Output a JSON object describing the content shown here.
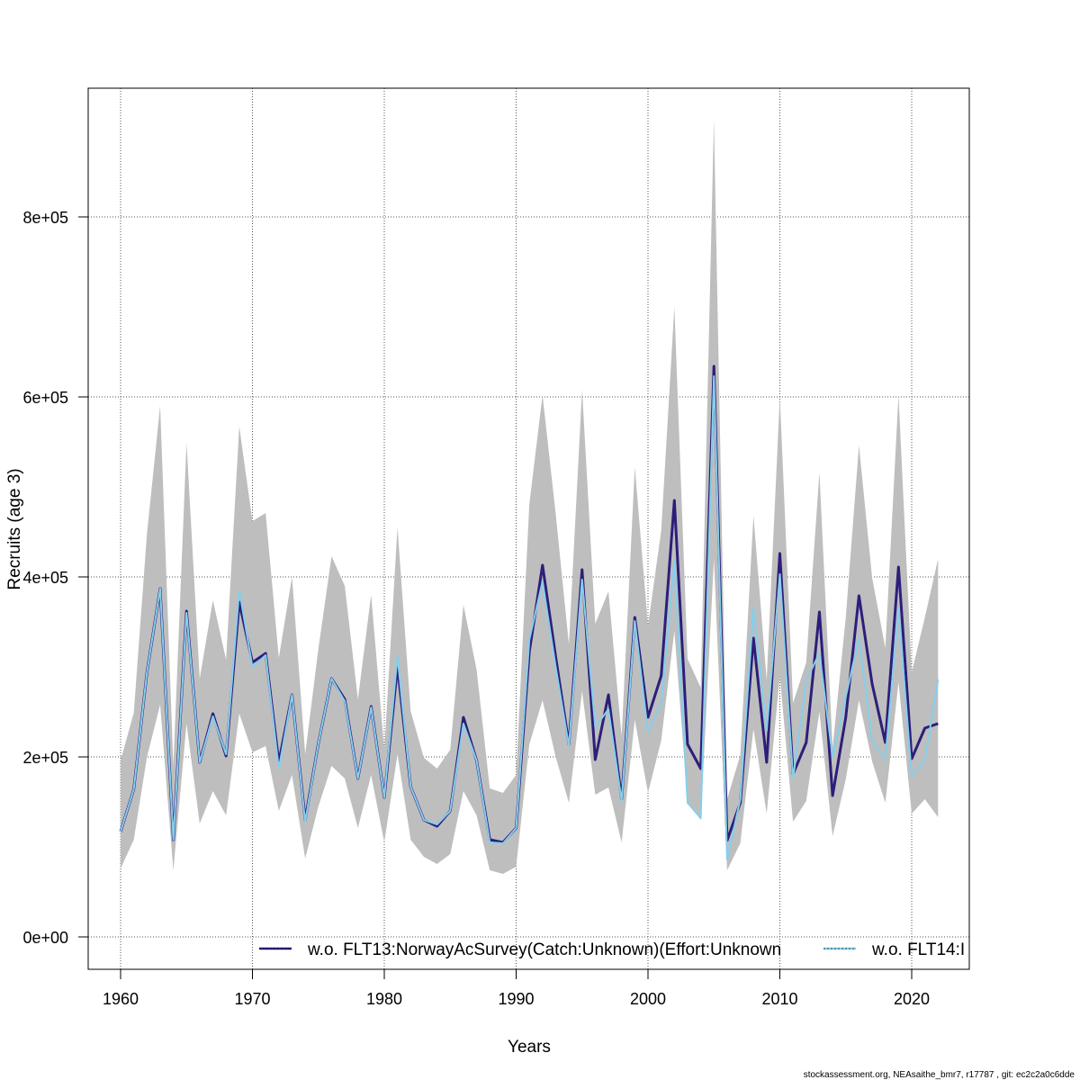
{
  "chart_data": {
    "type": "line",
    "title": "",
    "xlabel": "Years",
    "ylabel": "Recruits (age 3)",
    "xlim": [
      1958,
      2024.5
    ],
    "ylim": [
      -36000,
      944000
    ],
    "x_ticks": [
      1960,
      1970,
      1980,
      1990,
      2000,
      2010,
      2020
    ],
    "x_tick_labels": [
      "1960",
      "1970",
      "1980",
      "1990",
      "2000",
      "2010",
      "2020"
    ],
    "y_ticks": [
      0,
      200000,
      400000,
      600000,
      800000
    ],
    "y_tick_labels": [
      "0e+00",
      "2e+05",
      "4e+05",
      "6e+05",
      "8e+05"
    ],
    "grid": true,
    "legend_position": "bottom",
    "x": [
      1960,
      1961,
      1962,
      1963,
      1964,
      1965,
      1966,
      1967,
      1968,
      1969,
      1970,
      1971,
      1972,
      1973,
      1974,
      1975,
      1976,
      1977,
      1978,
      1979,
      1980,
      1981,
      1982,
      1983,
      1984,
      1985,
      1986,
      1987,
      1988,
      1989,
      1990,
      1991,
      1992,
      1993,
      1994,
      1995,
      1996,
      1997,
      1998,
      1999,
      2000,
      2001,
      2002,
      2003,
      2004,
      2005,
      2006,
      2007,
      2008,
      2009,
      2010,
      2011,
      2012,
      2013,
      2014,
      2015,
      2016,
      2017,
      2018,
      2019,
      2020,
      2021,
      2022
    ],
    "band": {
      "name": "confidence interval",
      "color": "#bebebe",
      "upper": [
        196000,
        249000,
        448000,
        590000,
        190000,
        549000,
        287000,
        374000,
        308000,
        567000,
        462000,
        471000,
        310000,
        400000,
        203000,
        320000,
        423000,
        390000,
        264000,
        380000,
        208000,
        455000,
        251000,
        199000,
        187000,
        208000,
        369000,
        297000,
        165000,
        160000,
        180000,
        481000,
        602000,
        470000,
        325000,
        608000,
        348000,
        384000,
        223000,
        522000,
        346000,
        451000,
        700000,
        309000,
        277000,
        908000,
        153000,
        202000,
        468000,
        285000,
        600000,
        260000,
        305000,
        516000,
        210000,
        355000,
        546000,
        399000,
        321000,
        602000,
        294000,
        355000,
        420000
      ],
      "lower": [
        76000,
        108000,
        200000,
        258000,
        74000,
        237000,
        126000,
        162000,
        135000,
        248000,
        205000,
        212000,
        140000,
        180000,
        87000,
        145000,
        190000,
        176000,
        121000,
        180000,
        105000,
        203000,
        108000,
        89000,
        81000,
        92000,
        162000,
        135000,
        74000,
        70000,
        78000,
        214000,
        263000,
        200000,
        149000,
        273000,
        158000,
        166000,
        105000,
        241000,
        160000,
        218000,
        340000,
        150000,
        130000,
        420000,
        74000,
        104000,
        231000,
        137000,
        290000,
        128000,
        151000,
        250000,
        112000,
        175000,
        263000,
        195000,
        149000,
        283000,
        137000,
        153000,
        133000
      ]
    },
    "series": [
      {
        "name": "w.o. FLT13:NorwayAcSurvey(Catch:Unknown)(Effort:Unknown",
        "color": "#2d1e7a",
        "values": [
          117000,
          164000,
          294000,
          387000,
          108000,
          362000,
          194000,
          248000,
          201000,
          372000,
          305000,
          315000,
          194000,
          269000,
          130000,
          215000,
          287000,
          264000,
          176000,
          256000,
          155000,
          301000,
          167000,
          130000,
          123000,
          140000,
          244000,
          196000,
          108000,
          105000,
          121000,
          317000,
          413000,
          311000,
          214000,
          408000,
          197000,
          269000,
          153000,
          355000,
          244000,
          290000,
          485000,
          214000,
          187000,
          634000,
          107000,
          149000,
          332000,
          194000,
          426000,
          181000,
          216000,
          361000,
          157000,
          244000,
          379000,
          281000,
          216000,
          411000,
          198000,
          232000,
          237000
        ]
      },
      {
        "name": "w.o. FLT14:I",
        "color": "#87ceeb",
        "values": [
          117000,
          164000,
          294000,
          387000,
          108000,
          360000,
          194000,
          245000,
          203000,
          385000,
          300000,
          313000,
          187000,
          269000,
          128000,
          215000,
          287000,
          262000,
          176000,
          255000,
          155000,
          312000,
          167000,
          130000,
          125000,
          140000,
          237000,
          196000,
          105000,
          104000,
          121000,
          330000,
          395000,
          300000,
          212000,
          397000,
          233000,
          253000,
          151000,
          351000,
          227000,
          260000,
          418000,
          149000,
          132000,
          623000,
          86000,
          153000,
          365000,
          229000,
          403000,
          176000,
          285000,
          315000,
          200000,
          267000,
          332000,
          218000,
          198000,
          365000,
          179000,
          197000,
          286000
        ]
      }
    ]
  },
  "footer": "stockassessment.org, NEAsaithe_bmr7, r17787 , git: ec2c2a0c6dde"
}
